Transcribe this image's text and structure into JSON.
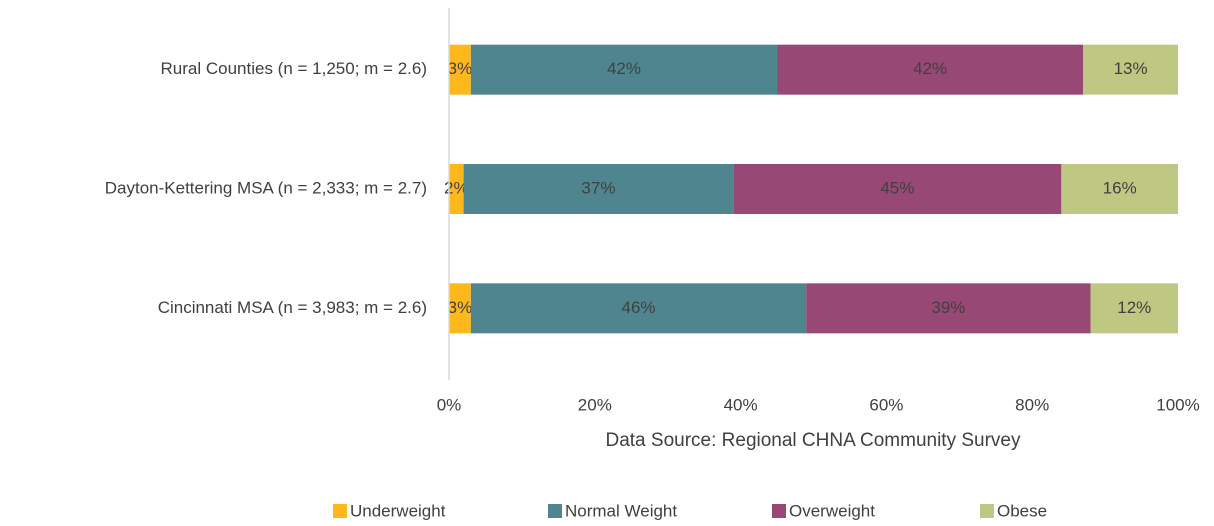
{
  "chart_data": {
    "type": "stacked_bar_horizontal",
    "categories": [
      "Rural Counties (n = 1,250; m  = 2.6)",
      "Dayton-Kettering MSA (n = 2,333; m  = 2.7)",
      "Cincinnati MSA (n = 3,983; m  = 2.6)"
    ],
    "series": [
      {
        "name": "Underweight",
        "color": "#ffb81c",
        "values": [
          3,
          2,
          3
        ],
        "value_labels": [
          "3%",
          "2%",
          "3%"
        ]
      },
      {
        "name": "Normal Weight",
        "color": "#4e858e",
        "values": [
          42,
          37,
          46
        ],
        "value_labels": [
          "42%",
          "37%",
          "46%"
        ]
      },
      {
        "name": "Overweight",
        "color": "#974875",
        "values": [
          42,
          45,
          39
        ],
        "value_labels": [
          "42%",
          "45%",
          "39%"
        ]
      },
      {
        "name": "Obese",
        "color": "#bfc882",
        "values": [
          13,
          16,
          12
        ],
        "value_labels": [
          "13%",
          "16%",
          "12%"
        ]
      }
    ],
    "xlim": [
      0,
      100
    ],
    "xticks": [
      {
        "value": 0,
        "label": "0%"
      },
      {
        "value": 20,
        "label": "20%"
      },
      {
        "value": 40,
        "label": "40%"
      },
      {
        "value": 60,
        "label": "60%"
      },
      {
        "value": 80,
        "label": "80%"
      },
      {
        "value": 100,
        "label": "100%"
      }
    ],
    "xlabel": "Data Source: Regional CHNA Community Survey",
    "grid": false,
    "legend": "bottom"
  }
}
